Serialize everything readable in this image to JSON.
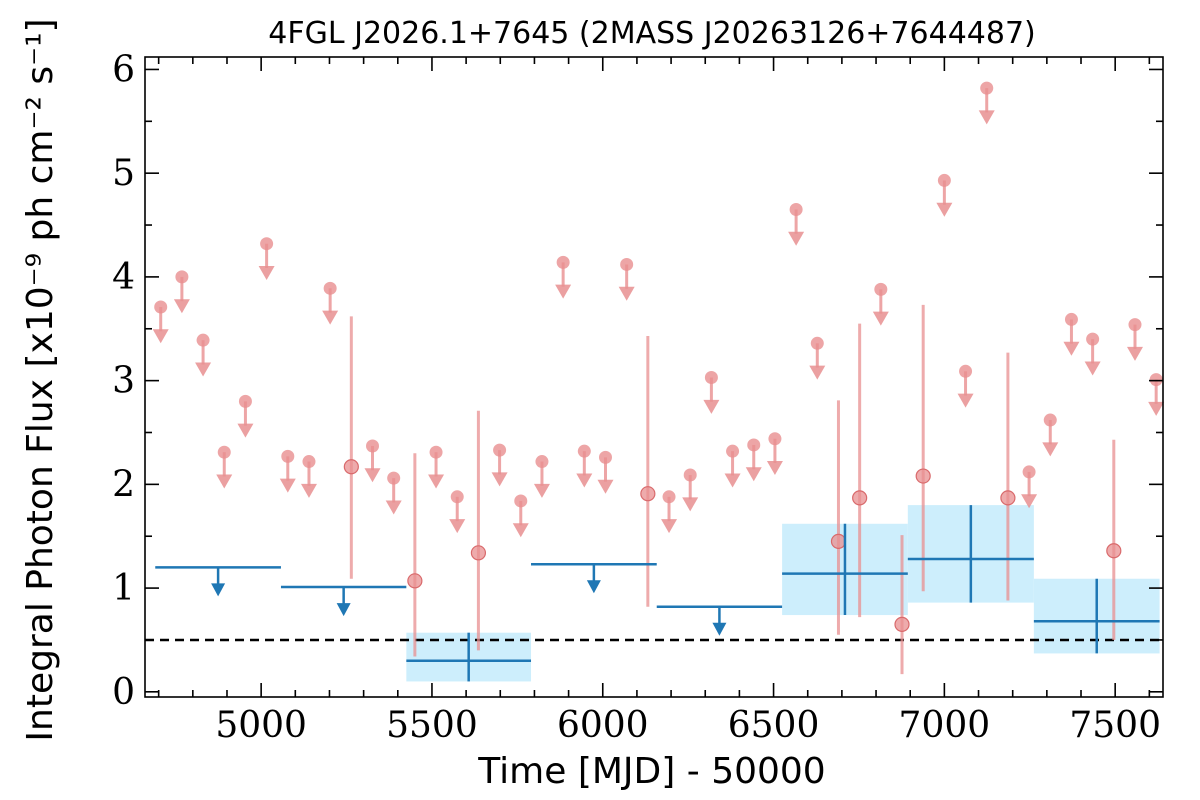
{
  "chart_data": {
    "type": "scatter",
    "title": "4FGL J2026.1+7645 (2MASS J20263126+7644487)",
    "xlabel": "Time [MJD] - 50000",
    "ylabel": "Integral Photon Flux [x10⁻⁹ ph cm⁻² s⁻¹]",
    "xlim": [
      4660,
      7640
    ],
    "ylim": [
      -0.05,
      6.12
    ],
    "xticks": [
      5000,
      5500,
      6000,
      6500,
      7000,
      7500
    ],
    "yticks": [
      0,
      1,
      2,
      3,
      4,
      5,
      6
    ],
    "grid": false,
    "legend": "none",
    "colors": {
      "short_bins": "#e88f90",
      "long_bins": "#1f77b4",
      "band": "#cdeefc",
      "reference": "#000000"
    },
    "reference_line": {
      "y": 0.5,
      "style": "dashed"
    },
    "series": [
      {
        "bin": "short",
        "upper_limits": [
          {
            "x": 4706,
            "y": 3.71
          },
          {
            "x": 4768,
            "y": 4.0
          },
          {
            "x": 4830,
            "y": 3.39
          },
          {
            "x": 4892,
            "y": 2.31
          },
          {
            "x": 4954,
            "y": 2.8
          },
          {
            "x": 5016,
            "y": 4.32
          },
          {
            "x": 5078,
            "y": 2.27
          },
          {
            "x": 5140,
            "y": 2.22
          },
          {
            "x": 5202,
            "y": 3.89
          },
          {
            "x": 5326,
            "y": 2.37
          },
          {
            "x": 5388,
            "y": 2.06
          },
          {
            "x": 5512,
            "y": 2.31
          },
          {
            "x": 5574,
            "y": 1.88
          },
          {
            "x": 5698,
            "y": 2.33
          },
          {
            "x": 5760,
            "y": 1.84
          },
          {
            "x": 5822,
            "y": 2.22
          },
          {
            "x": 5884,
            "y": 4.14
          },
          {
            "x": 5946,
            "y": 2.32
          },
          {
            "x": 6008,
            "y": 2.26
          },
          {
            "x": 6070,
            "y": 4.12
          },
          {
            "x": 6194,
            "y": 1.88
          },
          {
            "x": 6256,
            "y": 2.09
          },
          {
            "x": 6318,
            "y": 3.03
          },
          {
            "x": 6380,
            "y": 2.32
          },
          {
            "x": 6442,
            "y": 2.38
          },
          {
            "x": 6504,
            "y": 2.44
          },
          {
            "x": 6566,
            "y": 4.65
          },
          {
            "x": 6628,
            "y": 3.36
          },
          {
            "x": 6814,
            "y": 3.88
          },
          {
            "x": 7000,
            "y": 4.93
          },
          {
            "x": 7062,
            "y": 3.09
          },
          {
            "x": 7124,
            "y": 5.82
          },
          {
            "x": 7248,
            "y": 2.12
          },
          {
            "x": 7310,
            "y": 2.62
          },
          {
            "x": 7372,
            "y": 3.59
          },
          {
            "x": 7434,
            "y": 3.4
          },
          {
            "x": 7558,
            "y": 3.54
          },
          {
            "x": 7620,
            "y": 3.01
          }
        ],
        "detections": [
          {
            "x": 5264,
            "y": 2.17,
            "ylo": 1.09,
            "yhi": 3.62
          },
          {
            "x": 5450,
            "y": 1.07,
            "ylo": 0.34,
            "yhi": 2.3
          },
          {
            "x": 5636,
            "y": 1.34,
            "ylo": 0.4,
            "yhi": 2.71
          },
          {
            "x": 6132,
            "y": 1.91,
            "ylo": 0.82,
            "yhi": 3.43
          },
          {
            "x": 6690,
            "y": 1.45,
            "ylo": 0.55,
            "yhi": 2.81
          },
          {
            "x": 6752,
            "y": 1.87,
            "ylo": 0.72,
            "yhi": 3.55
          },
          {
            "x": 6876,
            "y": 0.65,
            "ylo": 0.17,
            "yhi": 1.51
          },
          {
            "x": 6938,
            "y": 2.08,
            "ylo": 0.97,
            "yhi": 3.73
          },
          {
            "x": 7186,
            "y": 1.87,
            "ylo": 0.88,
            "yhi": 3.27
          },
          {
            "x": 7496,
            "y": 1.36,
            "ylo": 0.5,
            "yhi": 2.43
          }
        ]
      },
      {
        "bin": "long",
        "upper_limits": [
          {
            "x0": 4690,
            "x1": 5058,
            "y": 1.2
          },
          {
            "x0": 5058,
            "x1": 5425,
            "y": 1.01
          },
          {
            "x0": 5790,
            "x1": 6158,
            "y": 1.23
          },
          {
            "x0": 6158,
            "x1": 6525,
            "y": 0.82
          }
        ],
        "detections": [
          {
            "x0": 5425,
            "x1": 5790,
            "y": 0.3,
            "ylo": 0.1,
            "yhi": 0.57
          },
          {
            "x0": 6525,
            "x1": 6893,
            "y": 1.14,
            "ylo": 0.74,
            "yhi": 1.62
          },
          {
            "x0": 6893,
            "x1": 7262,
            "y": 1.28,
            "ylo": 0.86,
            "yhi": 1.8
          },
          {
            "x0": 7262,
            "x1": 7630,
            "y": 0.68,
            "ylo": 0.37,
            "yhi": 1.09
          }
        ]
      }
    ]
  }
}
